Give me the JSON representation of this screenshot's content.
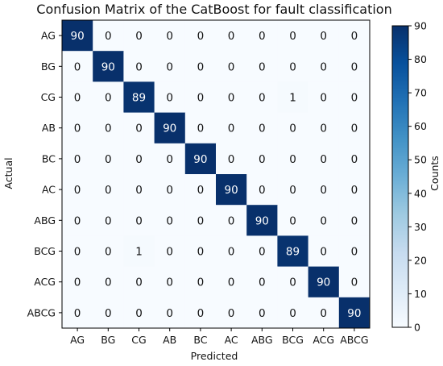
{
  "chart_data": {
    "type": "heatmap",
    "title": "Confusion Matrix of the CatBoost for fault classification",
    "xlabel": "Predicted",
    "ylabel": "Actual",
    "x_categories": [
      "AG",
      "BG",
      "CG",
      "AB",
      "BC",
      "AC",
      "ABG",
      "BCG",
      "ACG",
      "ABCG"
    ],
    "y_categories": [
      "AG",
      "BG",
      "CG",
      "AB",
      "BC",
      "AC",
      "ABG",
      "BCG",
      "ACG",
      "ABCG"
    ],
    "matrix": [
      [
        90,
        0,
        0,
        0,
        0,
        0,
        0,
        0,
        0,
        0
      ],
      [
        0,
        90,
        0,
        0,
        0,
        0,
        0,
        0,
        0,
        0
      ],
      [
        0,
        0,
        89,
        0,
        0,
        0,
        0,
        1,
        0,
        0
      ],
      [
        0,
        0,
        0,
        90,
        0,
        0,
        0,
        0,
        0,
        0
      ],
      [
        0,
        0,
        0,
        0,
        90,
        0,
        0,
        0,
        0,
        0
      ],
      [
        0,
        0,
        0,
        0,
        0,
        90,
        0,
        0,
        0,
        0
      ],
      [
        0,
        0,
        0,
        0,
        0,
        0,
        90,
        0,
        0,
        0
      ],
      [
        0,
        0,
        1,
        0,
        0,
        0,
        0,
        89,
        0,
        0
      ],
      [
        0,
        0,
        0,
        0,
        0,
        0,
        0,
        0,
        90,
        0
      ],
      [
        0,
        0,
        0,
        0,
        0,
        0,
        0,
        0,
        0,
        90
      ]
    ],
    "colorbar": {
      "label": "Counts",
      "min": 0,
      "max": 90,
      "ticks": [
        0,
        10,
        20,
        30,
        40,
        50,
        60,
        70,
        80,
        90
      ]
    },
    "colormap": "Blues",
    "grid": false
  }
}
